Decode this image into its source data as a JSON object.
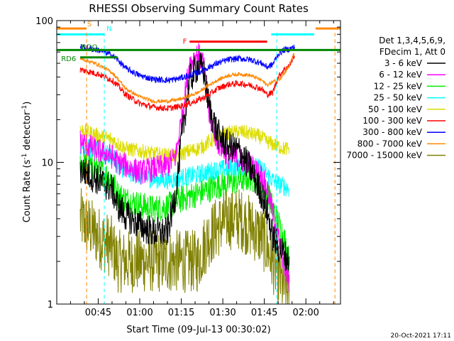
{
  "window": {
    "timestamp": "20-Oct-2021 17:11"
  },
  "chart_data": {
    "type": "line",
    "title": "RHESSI Observing Summary Count Rates",
    "xlabel": "Start Time (09-Jul-13 00:30:02)",
    "ylabel": "Count Rate (s",
    "ylabel_sup": "-1",
    "ylabel_tail": " detector",
    "ylabel_close": ")",
    "y_scale": "log",
    "ylim": [
      1,
      100
    ],
    "xlim_minutes": [
      30.03,
      132.5
    ],
    "x_unit": "minutes after 00:00 UT",
    "x_ticks": [
      {
        "value": 45,
        "label": "00:45"
      },
      {
        "value": 60,
        "label": "01:00"
      },
      {
        "value": 75,
        "label": "01:15"
      },
      {
        "value": 90,
        "label": "01:30"
      },
      {
        "value": 105,
        "label": "01:45"
      },
      {
        "value": 120,
        "label": "02:00"
      }
    ],
    "y_ticks": [
      {
        "value": 1,
        "label": "1"
      },
      {
        "value": 10,
        "label": "10"
      },
      {
        "value": 100,
        "label": "100"
      }
    ],
    "legend": {
      "placement": "right",
      "header": [
        "Det 1,3,4,5,6,9,",
        "FDecim 1, Att 0"
      ],
      "entries": [
        {
          "name": "3 - 6 keV",
          "color": "#000000"
        },
        {
          "name": "6 - 12 keV",
          "color": "#ff00ff"
        },
        {
          "name": "12 - 25 keV",
          "color": "#00ee00"
        },
        {
          "name": "25 - 50 keV",
          "color": "#00ffff"
        },
        {
          "name": "50 - 100 keV",
          "color": "#dddd00"
        },
        {
          "name": "100 - 300 keV",
          "color": "#ff0000"
        },
        {
          "name": "300 - 800 keV",
          "color": "#0000ff"
        },
        {
          "name": "800 - 7000 keV",
          "color": "#ff8800"
        },
        {
          "name": "7000 - 15000 keV",
          "color": "#808000"
        }
      ]
    },
    "flags": [
      {
        "label": "S",
        "color": "#ff8800",
        "y": 88,
        "x_start": 30.03,
        "x_end": 40.8,
        "x_start2": 123.5,
        "x_end2": 132.5
      },
      {
        "label": "N",
        "color": "#00ffff",
        "y": 80,
        "x_start": 30.03,
        "x_end": 47.2,
        "x_start2": 107.5,
        "x_end2": 123
      },
      {
        "label": "F",
        "color": "#ff0000",
        "y": 71,
        "x_start": 78,
        "x_end": 106
      },
      {
        "label": "RDO",
        "color": "#008800",
        "y": 62,
        "x_start": 30.03,
        "x_end": 132.5
      },
      {
        "label": "RD6",
        "color": "#008800",
        "y": 55,
        "x_start": 38.5,
        "x_end": 52
      }
    ],
    "markers": [
      {
        "name": "saa-exit",
        "color": "#ff8800",
        "x": 40.8
      },
      {
        "name": "night-end",
        "color": "#00ffff",
        "x": 47.2
      },
      {
        "name": "night-start",
        "color": "#00ffff",
        "x": 109.5
      },
      {
        "name": "saa-entry",
        "color": "#ff8800",
        "x": 130.5
      }
    ],
    "x_points": [
      38.5,
      45,
      50,
      52,
      55,
      60,
      65,
      70,
      73,
      75,
      78,
      81,
      83,
      85,
      88,
      92,
      96,
      100,
      104,
      106,
      108,
      110,
      112,
      114,
      116
    ],
    "series": [
      {
        "name": "3 - 6 keV",
        "color": "#000000",
        "noise": 0.25,
        "values": [
          9.0,
          7.5,
          6.5,
          5.0,
          4.2,
          3.6,
          3.2,
          3.2,
          6.0,
          14,
          38,
          48,
          45,
          25,
          16,
          13,
          12,
          9,
          6,
          4.5,
          3.0,
          2.5,
          2.3,
          2.0,
          null
        ]
      },
      {
        "name": "6 - 12 keV",
        "color": "#ff00ff",
        "noise": 0.2,
        "values": [
          14,
          12,
          11,
          10,
          9.5,
          8.5,
          9.0,
          9.5,
          11,
          20,
          50,
          58,
          50,
          22,
          14,
          11,
          10.5,
          9.5,
          8.0,
          6.5,
          4.5,
          3.0,
          2.0,
          1.4,
          null
        ]
      },
      {
        "name": "12 - 25 keV",
        "color": "#00ee00",
        "noise": 0.22,
        "values": [
          10,
          9.0,
          7.5,
          6.0,
          5.5,
          5.0,
          4.7,
          4.9,
          5.2,
          5.5,
          5.8,
          6.0,
          6.2,
          6.5,
          6.8,
          7.2,
          7.5,
          7.8,
          7.0,
          6.0,
          4.8,
          3.8,
          3.0,
          2.0,
          null
        ]
      },
      {
        "name": "25 - 50 keV",
        "color": "#00ffff",
        "noise": 0.15,
        "values": [
          13,
          12,
          11,
          9.5,
          8.7,
          8.0,
          7.6,
          7.5,
          7.6,
          7.8,
          8.0,
          8.2,
          8.4,
          8.6,
          8.9,
          9.1,
          9.3,
          9.5,
          9.0,
          8.2,
          7.5,
          7.0,
          6.8,
          6.5,
          null
        ]
      },
      {
        "name": "50 - 100 keV",
        "color": "#dddd00",
        "noise": 0.12,
        "values": [
          17,
          15.5,
          14.5,
          13.5,
          12.5,
          12.0,
          11.5,
          11.2,
          11.2,
          11.5,
          12,
          12.5,
          13,
          14,
          15,
          16,
          16.5,
          16.0,
          15,
          14,
          13.5,
          13.0,
          12.5,
          12.5,
          null
        ]
      },
      {
        "name": "100 - 300 keV",
        "color": "#ff0000",
        "noise": 0.05,
        "values": [
          45,
          42,
          38,
          35,
          30,
          26,
          24.5,
          24,
          24.5,
          25,
          26,
          27.5,
          28.5,
          30,
          33,
          35.5,
          36,
          35,
          33,
          30,
          31,
          40,
          45,
          48,
          58
        ]
      },
      {
        "name": "300 - 800 keV",
        "color": "#0000ff",
        "noise": 0.05,
        "values": [
          65,
          62,
          57,
          53,
          46,
          41,
          38.5,
          38,
          38.5,
          39.5,
          41,
          43,
          45,
          47,
          50,
          53,
          54,
          53,
          50,
          47,
          49,
          58,
          62,
          63,
          65
        ]
      },
      {
        "name": "800 - 7000 keV",
        "color": "#ff8800",
        "noise": 0.03,
        "values": [
          54,
          49,
          43,
          39,
          33,
          29,
          27,
          27,
          27.5,
          28,
          29.5,
          31,
          33,
          35,
          38,
          41,
          42,
          41,
          38,
          35,
          37,
          38,
          42,
          48,
          60
        ]
      },
      {
        "name": "7000 - 15000 keV",
        "color": "#808000",
        "noise": 0.5,
        "values": [
          4.0,
          3.0,
          2.5,
          2.0,
          2.0,
          2.0,
          2.0,
          2.0,
          2.0,
          2.0,
          2.0,
          2.0,
          2.5,
          3.0,
          3.5,
          4.0,
          4.0,
          3.5,
          3.0,
          2.5,
          2.0,
          1.6,
          1.3,
          1.2,
          null
        ]
      }
    ]
  }
}
